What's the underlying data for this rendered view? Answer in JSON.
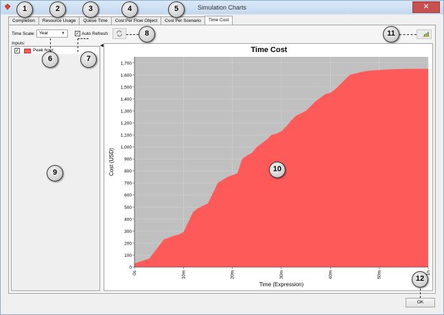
{
  "window": {
    "title": "Simulation Charts",
    "close_glyph": "✕",
    "icon": "visual-paradigm-icon"
  },
  "tabs": [
    {
      "label": "Completion"
    },
    {
      "label": "Resource Usage"
    },
    {
      "label": "Queue Time"
    },
    {
      "label": "Cost Per Flow Object"
    },
    {
      "label": "Cost Per Scenario"
    },
    {
      "label": "Time Cost",
      "active": true
    }
  ],
  "toolbar": {
    "time_scale_label": "Time Scale:",
    "time_scale_value": "Year",
    "auto_refresh_label": "Auto Refresh",
    "auto_refresh_checked": true,
    "refresh_icon": "refresh-icon",
    "export_icon": "chart-export-icon"
  },
  "inputs": {
    "label": "Inputs:",
    "items": [
      {
        "label": "Peak hour",
        "checked": true,
        "color": "#ff5a5a"
      }
    ]
  },
  "callouts": [
    "1",
    "2",
    "3",
    "4",
    "5",
    "6",
    "7",
    "8",
    "9",
    "10",
    "11",
    "12"
  ],
  "chart_data": {
    "type": "area",
    "title": "Time Cost",
    "xlabel": "Time (Expression)",
    "ylabel": "Cost (USD)",
    "xlim": [
      0,
      60
    ],
    "ylim": [
      0,
      1750
    ],
    "x_ticks": [
      "0s",
      "10m",
      "20m",
      "30m",
      "40m",
      "50m",
      "1h"
    ],
    "y_ticks": [
      0,
      100,
      200,
      300,
      400,
      500,
      600,
      700,
      800,
      900,
      1000,
      1100,
      1200,
      1300,
      1400,
      1500,
      1600,
      1700
    ],
    "plot_background": "#c0c0c0",
    "fill_color": "#ff5a5a",
    "grid": true,
    "series": [
      {
        "x": [
          0,
          3,
          6,
          8,
          9,
          10,
          12,
          13,
          15,
          17,
          19,
          21,
          22,
          23,
          24,
          25,
          27,
          28,
          29,
          30,
          31,
          32,
          33,
          34,
          35,
          36,
          37,
          38,
          39,
          40,
          41,
          42,
          43,
          44,
          45,
          46,
          47,
          48,
          49,
          50,
          52,
          54,
          56,
          58,
          60
        ],
        "y": [
          30,
          70,
          230,
          260,
          270,
          290,
          460,
          490,
          530,
          700,
          750,
          780,
          900,
          930,
          950,
          1000,
          1060,
          1100,
          1110,
          1130,
          1170,
          1220,
          1260,
          1280,
          1300,
          1340,
          1380,
          1410,
          1440,
          1450,
          1480,
          1520,
          1560,
          1600,
          1610,
          1620,
          1630,
          1635,
          1638,
          1640,
          1645,
          1648,
          1650,
          1650,
          1650
        ]
      }
    ]
  },
  "buttons": {
    "ok": "OK"
  }
}
